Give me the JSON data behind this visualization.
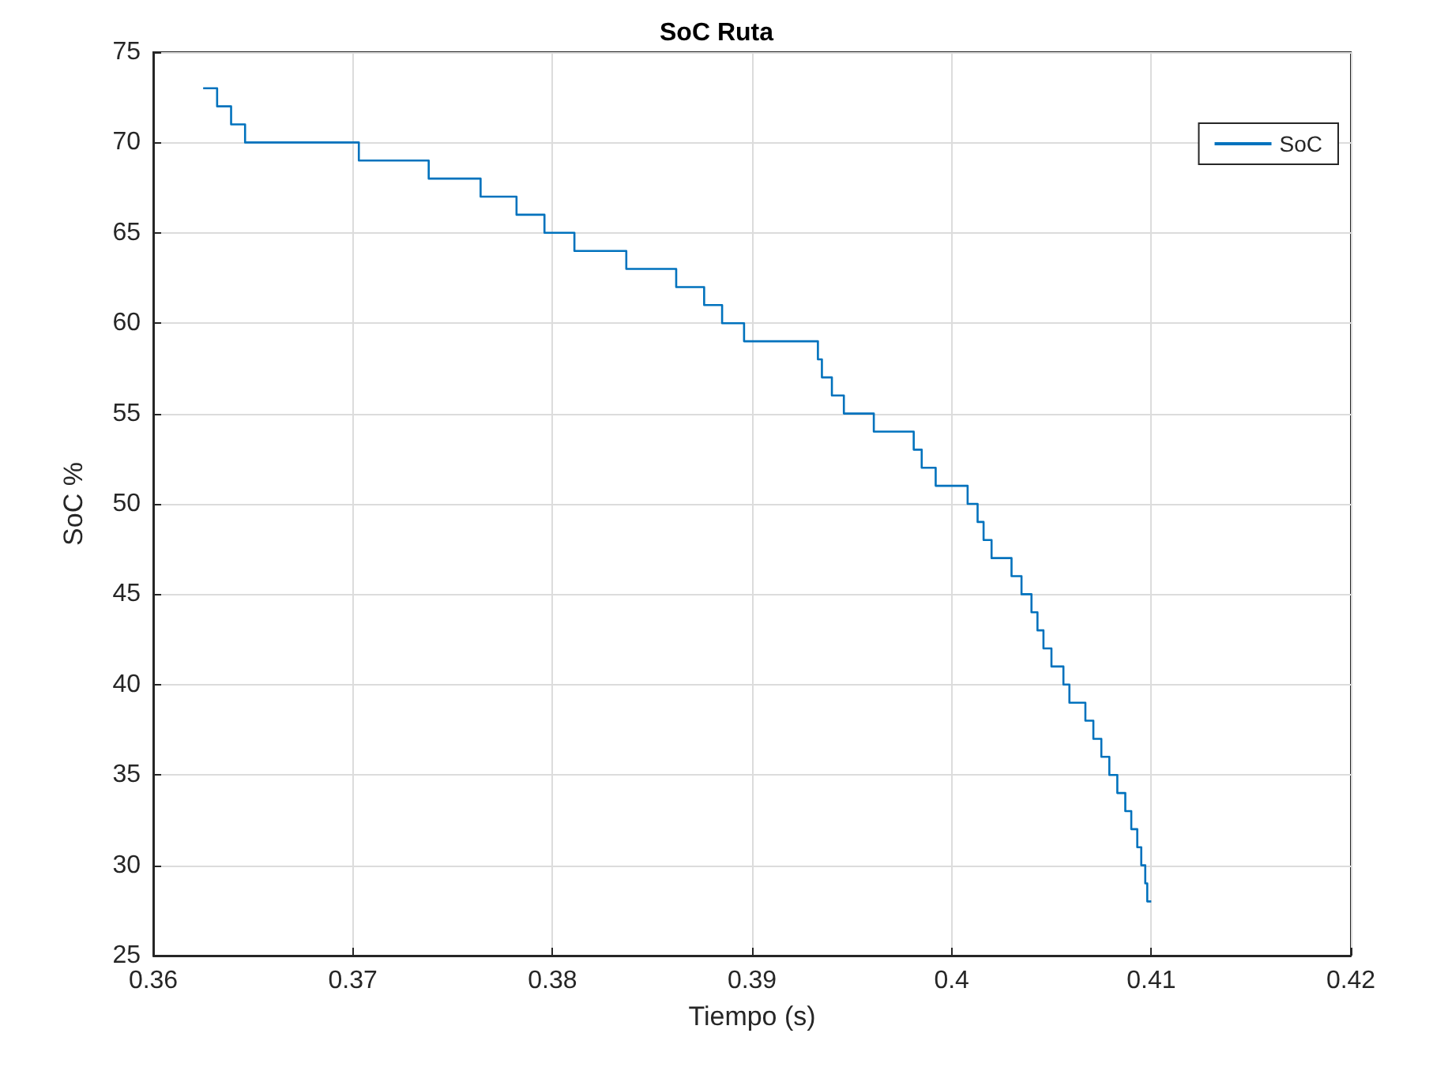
{
  "chart_data": {
    "type": "step",
    "title": "SoC Ruta",
    "xlabel": "Tiempo (s)",
    "ylabel": "SoC %",
    "x": [
      0.3625,
      0.3632,
      0.3639,
      0.3646,
      0.3703,
      0.3738,
      0.3764,
      0.3782,
      0.3796,
      0.3811,
      0.3837,
      0.3862,
      0.3876,
      0.3885,
      0.3896,
      0.3933,
      0.3935,
      0.394,
      0.3946,
      0.3961,
      0.3981,
      0.3985,
      0.3992,
      0.4008,
      0.4013,
      0.4016,
      0.402,
      0.403,
      0.4035,
      0.404,
      0.4043,
      0.4046,
      0.405,
      0.4056,
      0.4059,
      0.4067,
      0.4071,
      0.4075,
      0.4079,
      0.4083,
      0.4087,
      0.409,
      0.4093,
      0.4095,
      0.4097,
      0.4098,
      0.41
    ],
    "series": [
      {
        "name": "SoC",
        "color": "#0072bd",
        "values": [
          73,
          72,
          71,
          70,
          69,
          68,
          67,
          66,
          65,
          64,
          63,
          62,
          61,
          60,
          59,
          58,
          57,
          56,
          55,
          54,
          53,
          52,
          51,
          50,
          49,
          48,
          47,
          46,
          45,
          44,
          43,
          42,
          41,
          40,
          39,
          38,
          37,
          36,
          35,
          34,
          33,
          32,
          31,
          30,
          29,
          28,
          28
        ]
      }
    ],
    "xlim": [
      0.36,
      0.42
    ],
    "xticks": [
      0.36,
      0.37,
      0.38,
      0.39,
      0.4,
      0.41,
      0.42
    ],
    "ylim": [
      25,
      75
    ],
    "yticks": [
      25,
      30,
      35,
      40,
      45,
      50,
      55,
      60,
      65,
      70,
      75
    ],
    "grid": true,
    "legend": "top right",
    "marker": "none",
    "line_style": "solid"
  }
}
